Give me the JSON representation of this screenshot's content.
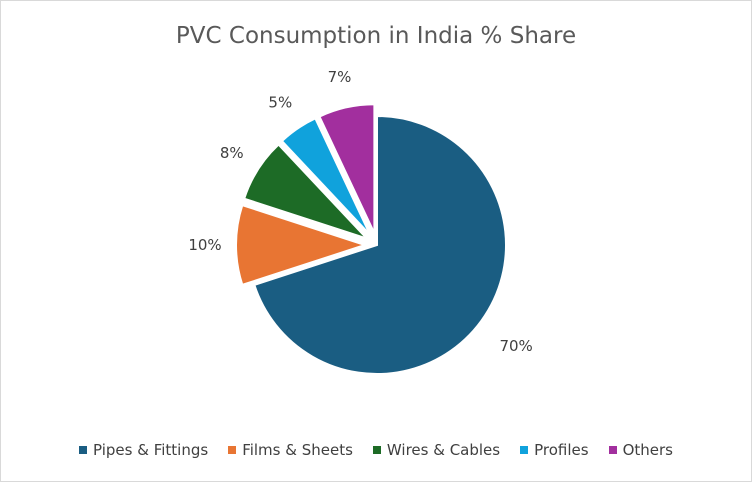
{
  "chart_data": {
    "type": "pie",
    "title": "PVC Consumption in India % Share",
    "categories": [
      "Pipes & Fittings",
      "Films & Sheets",
      "Wires & Cables",
      "Profiles",
      "Others"
    ],
    "values": [
      70,
      10,
      8,
      5,
      7
    ],
    "data_labels": [
      "70%",
      "10%",
      "8%",
      "5%",
      "7%"
    ],
    "colors": [
      "#1a5d82",
      "#e87533",
      "#1d6b26",
      "#10a2dc",
      "#a22f9e"
    ],
    "exploded": true,
    "legend_position": "bottom"
  }
}
